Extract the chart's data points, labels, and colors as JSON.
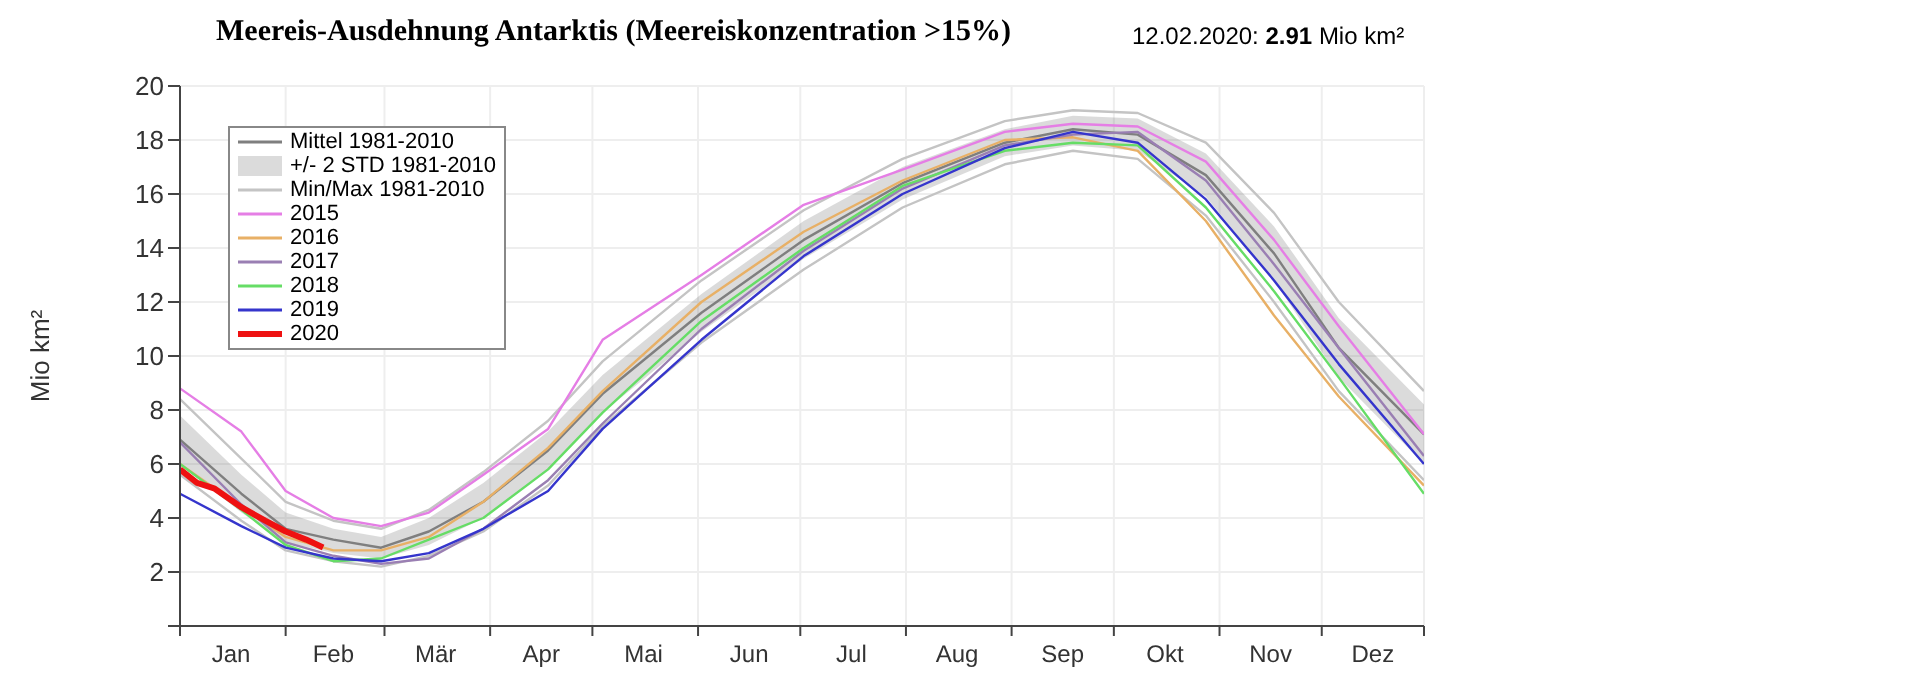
{
  "chart_data": {
    "type": "line",
    "title": "Meereis-Ausdehnung Antarktis (Meereiskonzentration >15%)",
    "subtitle": "12.02.2020: 2.91 Mio km²",
    "ylabel": "Mio km²",
    "x": [
      "--01-01",
      "--01-19",
      "--02-01",
      "--02-15",
      "--02-29",
      "--03-14",
      "--03-30",
      "--04-18",
      "--05-04",
      "--06-02",
      "--07-02",
      "--07-31",
      "--08-30",
      "--09-19",
      "--10-08",
      "--10-28",
      "--11-17",
      "--12-06",
      "--12-31"
    ],
    "xlim": [
      "--01-01",
      "--12-31"
    ],
    "xticks": [
      {
        "value": "--01-01",
        "label": null
      },
      {
        "value": "--01-16",
        "label": "Jan"
      },
      {
        "value": "--02-01",
        "label": null
      },
      {
        "value": "--02-15",
        "label": "Feb"
      },
      {
        "value": "--03-01",
        "label": null
      },
      {
        "value": "--03-16",
        "label": "Mär"
      },
      {
        "value": "--04-01",
        "label": null
      },
      {
        "value": "--04-16",
        "label": "Apr"
      },
      {
        "value": "--05-01",
        "label": null
      },
      {
        "value": "--05-16",
        "label": "Mai"
      },
      {
        "value": "--06-01",
        "label": null
      },
      {
        "value": "--06-16",
        "label": "Jun"
      },
      {
        "value": "--07-01",
        "label": null
      },
      {
        "value": "--07-16",
        "label": "Jul"
      },
      {
        "value": "--08-01",
        "label": null
      },
      {
        "value": "--08-16",
        "label": "Aug"
      },
      {
        "value": "--09-01",
        "label": null
      },
      {
        "value": "--09-16",
        "label": "Sep"
      },
      {
        "value": "--10-01",
        "label": null
      },
      {
        "value": "--10-16",
        "label": "Okt"
      },
      {
        "value": "--11-01",
        "label": null
      },
      {
        "value": "--11-16",
        "label": "Nov"
      },
      {
        "value": "--12-01",
        "label": null
      },
      {
        "value": "--12-16",
        "label": "Dez"
      },
      {
        "value": "--12-31",
        "label": null
      }
    ],
    "ylim": [
      0,
      20
    ],
    "yticks": [
      {
        "value": 0,
        "label": null
      },
      2,
      4,
      6,
      8,
      10,
      12,
      14,
      16,
      18,
      20
    ],
    "grid": true,
    "legend": "top left",
    "annotations": [
      "+/- 2 STD 1981-2010"
    ],
    "series": [
      {
        "name": "Mittel 1981-2010",
        "color": "#7f7f7f",
        "values": [
          6.9,
          4.9,
          3.6,
          3.2,
          2.9,
          3.5,
          4.6,
          6.5,
          8.6,
          11.6,
          14.3,
          16.4,
          17.9,
          18.4,
          18.2,
          16.7,
          13.8,
          10.3,
          7.1
        ],
        "lower": [
          6.0,
          4.2,
          3.1,
          2.7,
          2.5,
          3.0,
          4.0,
          5.8,
          7.9,
          10.9,
          13.6,
          15.8,
          17.4,
          17.8,
          17.6,
          15.9,
          12.8,
          9.2,
          6.0
        ],
        "upper": [
          7.8,
          5.6,
          4.2,
          3.6,
          3.3,
          4.0,
          5.3,
          7.2,
          9.3,
          12.3,
          15.0,
          17.0,
          18.4,
          18.9,
          18.8,
          17.5,
          14.8,
          11.4,
          8.2
        ]
      },
      {
        "name": "Min/Max 1981-2010",
        "color": "#c4c4c4",
        "values": [
          8.4,
          6.2,
          4.6,
          3.9,
          3.6,
          4.3,
          5.7,
          7.6,
          9.8,
          12.8,
          15.4,
          17.3,
          18.7,
          19.1,
          19.0,
          17.9,
          15.3,
          12.0,
          8.7
        ]
      },
      {
        "color": "#c4c4c4",
        "values": [
          5.6,
          3.9,
          2.8,
          2.4,
          2.2,
          2.6,
          3.5,
          5.2,
          7.4,
          10.5,
          13.2,
          15.5,
          17.1,
          17.6,
          17.3,
          15.2,
          12.0,
          8.7,
          5.4
        ]
      },
      {
        "name": "2015",
        "color": "#e57ee5",
        "values": [
          8.8,
          7.2,
          5.0,
          4.0,
          3.7,
          4.2,
          5.6,
          7.3,
          10.6,
          13.0,
          15.6,
          16.9,
          18.3,
          18.6,
          18.5,
          17.2,
          14.3,
          11.1,
          7.1
        ]
      },
      {
        "name": "2016",
        "color": "#e8b066",
        "values": [
          6.0,
          4.4,
          3.3,
          2.8,
          2.8,
          3.3,
          4.6,
          6.6,
          8.7,
          12.0,
          14.6,
          16.5,
          18.0,
          18.1,
          17.6,
          15.0,
          11.5,
          8.5,
          5.2
        ]
      },
      {
        "name": "2017",
        "color": "#9a7fb3",
        "values": [
          6.8,
          4.5,
          3.1,
          2.6,
          2.3,
          2.5,
          3.6,
          5.4,
          7.5,
          11.0,
          13.9,
          16.2,
          17.8,
          18.2,
          18.3,
          16.5,
          13.4,
          10.3,
          6.3
        ]
      },
      {
        "name": "2018",
        "color": "#66dd66",
        "values": [
          6.0,
          4.3,
          3.0,
          2.4,
          2.5,
          3.2,
          4.0,
          5.8,
          7.9,
          11.3,
          14.0,
          16.3,
          17.6,
          17.9,
          17.8,
          15.5,
          12.4,
          9.2,
          4.9
        ]
      },
      {
        "name": "2019",
        "color": "#3535cc",
        "values": [
          4.9,
          3.7,
          2.9,
          2.5,
          2.4,
          2.7,
          3.6,
          5.0,
          7.3,
          10.6,
          13.7,
          16.0,
          17.7,
          18.3,
          17.9,
          15.8,
          12.8,
          9.7,
          6.0
        ]
      },
      {
        "name": "2020",
        "color": "#ee1111",
        "x": [
          "--01-01",
          "--01-06",
          "--01-11",
          "--01-19",
          "--01-26",
          "--02-01",
          "--02-07",
          "--02-12"
        ],
        "values": [
          5.8,
          5.3,
          5.1,
          4.4,
          3.9,
          3.5,
          3.2,
          2.91
        ]
      }
    ]
  }
}
